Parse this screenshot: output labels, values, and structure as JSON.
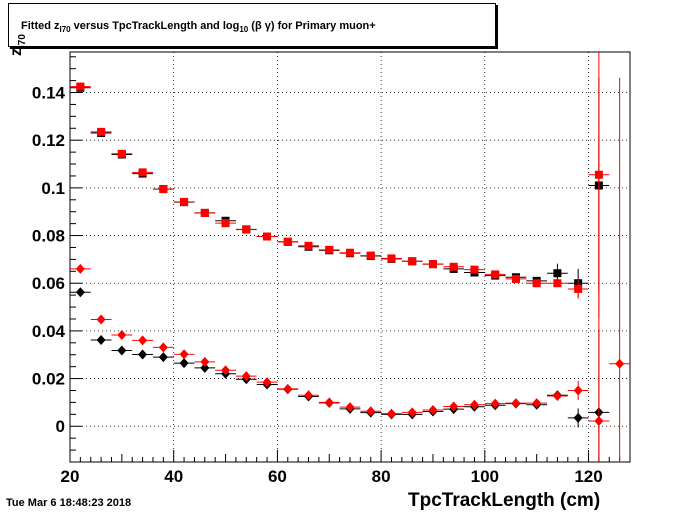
{
  "title": {
    "part1": "Fitted  z",
    "sub1": "I70",
    "part2": "  versus TpcTrackLength and log",
    "sub2": "10",
    "part3": " (β γ) for Primary muon+"
  },
  "timestamp": "Tue Mar  6 18:48:23 2018",
  "chart_data": {
    "type": "scatter",
    "xlabel": "TpcTrackLength (cm)",
    "ylabel_main": "z",
    "ylabel_sub": "I70",
    "xlim": [
      20,
      128
    ],
    "ylim": [
      -0.015,
      0.157
    ],
    "xticks": [
      20,
      40,
      60,
      80,
      100,
      120
    ],
    "xtick_labels": [
      "20",
      "40",
      "60",
      "80",
      "100",
      "120"
    ],
    "yticks": [
      0,
      0.02,
      0.04,
      0.06,
      0.08,
      0.1,
      0.12,
      0.14
    ],
    "ytick_labels": [
      "0",
      "0.02",
      "0.04",
      "0.06",
      "0.08",
      "0.1",
      "0.12",
      "0.14"
    ],
    "grid": true,
    "x_bin_halfwidth": 2,
    "series": [
      {
        "marker": "square",
        "color": "#000000",
        "points": [
          {
            "x": 22,
            "y": 0.142
          },
          {
            "x": 26,
            "y": 0.123
          },
          {
            "x": 30,
            "y": 0.114
          },
          {
            "x": 34,
            "y": 0.106
          },
          {
            "x": 38,
            "y": 0.0995
          },
          {
            "x": 42,
            "y": 0.094
          },
          {
            "x": 46,
            "y": 0.0895
          },
          {
            "x": 50,
            "y": 0.0862
          },
          {
            "x": 54,
            "y": 0.0826
          },
          {
            "x": 58,
            "y": 0.0796
          },
          {
            "x": 62,
            "y": 0.0774
          },
          {
            "x": 66,
            "y": 0.0753
          },
          {
            "x": 70,
            "y": 0.0738
          },
          {
            "x": 74,
            "y": 0.0726
          },
          {
            "x": 78,
            "y": 0.0714
          },
          {
            "x": 82,
            "y": 0.0702
          },
          {
            "x": 86,
            "y": 0.0692
          },
          {
            "x": 90,
            "y": 0.068
          },
          {
            "x": 94,
            "y": 0.066
          },
          {
            "x": 98,
            "y": 0.0645
          },
          {
            "x": 102,
            "y": 0.0632
          },
          {
            "x": 106,
            "y": 0.0625
          },
          {
            "x": 110,
            "y": 0.061
          },
          {
            "x": 114,
            "y": 0.0642,
            "err": 0.004
          },
          {
            "x": 118,
            "y": 0.06,
            "err": 0.006
          },
          {
            "x": 122,
            "y": 0.101,
            "err": 0.045
          }
        ]
      },
      {
        "marker": "square",
        "color": "#ff0000",
        "points": [
          {
            "x": 22,
            "y": 0.1425
          },
          {
            "x": 26,
            "y": 0.1235
          },
          {
            "x": 30,
            "y": 0.1143
          },
          {
            "x": 34,
            "y": 0.1065
          },
          {
            "x": 38,
            "y": 0.0995
          },
          {
            "x": 42,
            "y": 0.0941
          },
          {
            "x": 46,
            "y": 0.0895
          },
          {
            "x": 50,
            "y": 0.0852
          },
          {
            "x": 54,
            "y": 0.0825
          },
          {
            "x": 58,
            "y": 0.0796
          },
          {
            "x": 62,
            "y": 0.0773
          },
          {
            "x": 66,
            "y": 0.0757
          },
          {
            "x": 70,
            "y": 0.074
          },
          {
            "x": 74,
            "y": 0.0728
          },
          {
            "x": 78,
            "y": 0.0716
          },
          {
            "x": 82,
            "y": 0.0704
          },
          {
            "x": 86,
            "y": 0.0692
          },
          {
            "x": 90,
            "y": 0.068
          },
          {
            "x": 94,
            "y": 0.0669
          },
          {
            "x": 98,
            "y": 0.0657
          },
          {
            "x": 102,
            "y": 0.0637
          },
          {
            "x": 106,
            "y": 0.0618
          },
          {
            "x": 110,
            "y": 0.06
          },
          {
            "x": 114,
            "y": 0.06
          },
          {
            "x": 118,
            "y": 0.0576,
            "err": 0.004
          },
          {
            "x": 122,
            "y": 0.1055,
            "err": 0.06
          }
        ]
      },
      {
        "marker": "diamond",
        "color": "#000000",
        "points": [
          {
            "x": 22,
            "y": 0.0562
          },
          {
            "x": 26,
            "y": 0.0362
          },
          {
            "x": 30,
            "y": 0.0318
          },
          {
            "x": 34,
            "y": 0.0301
          },
          {
            "x": 38,
            "y": 0.029
          },
          {
            "x": 42,
            "y": 0.0265
          },
          {
            "x": 46,
            "y": 0.0245
          },
          {
            "x": 50,
            "y": 0.022
          },
          {
            "x": 54,
            "y": 0.0197
          },
          {
            "x": 58,
            "y": 0.0175
          },
          {
            "x": 62,
            "y": 0.0155
          },
          {
            "x": 66,
            "y": 0.0125
          },
          {
            "x": 70,
            "y": 0.0098
          },
          {
            "x": 74,
            "y": 0.0073
          },
          {
            "x": 78,
            "y": 0.0057
          },
          {
            "x": 82,
            "y": 0.005
          },
          {
            "x": 86,
            "y": 0.005
          },
          {
            "x": 90,
            "y": 0.0062
          },
          {
            "x": 94,
            "y": 0.0072
          },
          {
            "x": 98,
            "y": 0.0082
          },
          {
            "x": 102,
            "y": 0.0088
          },
          {
            "x": 106,
            "y": 0.0095
          },
          {
            "x": 110,
            "y": 0.009
          },
          {
            "x": 114,
            "y": 0.013
          },
          {
            "x": 118,
            "y": 0.0035,
            "err": 0.004
          },
          {
            "x": 122,
            "y": 0.0058,
            "err": 0.035
          }
        ]
      },
      {
        "marker": "diamond",
        "color": "#ff0000",
        "points": [
          {
            "x": 22,
            "y": 0.066
          },
          {
            "x": 26,
            "y": 0.0448
          },
          {
            "x": 30,
            "y": 0.0383
          },
          {
            "x": 34,
            "y": 0.036
          },
          {
            "x": 38,
            "y": 0.0331
          },
          {
            "x": 42,
            "y": 0.0302
          },
          {
            "x": 46,
            "y": 0.027
          },
          {
            "x": 50,
            "y": 0.0235
          },
          {
            "x": 54,
            "y": 0.021
          },
          {
            "x": 58,
            "y": 0.0185
          },
          {
            "x": 62,
            "y": 0.0157
          },
          {
            "x": 66,
            "y": 0.013
          },
          {
            "x": 70,
            "y": 0.01
          },
          {
            "x": 74,
            "y": 0.008
          },
          {
            "x": 78,
            "y": 0.0063
          },
          {
            "x": 82,
            "y": 0.0053
          },
          {
            "x": 86,
            "y": 0.0058
          },
          {
            "x": 90,
            "y": 0.0068
          },
          {
            "x": 94,
            "y": 0.0083
          },
          {
            "x": 98,
            "y": 0.009
          },
          {
            "x": 102,
            "y": 0.0095
          },
          {
            "x": 106,
            "y": 0.0097
          },
          {
            "x": 110,
            "y": 0.0097
          },
          {
            "x": 114,
            "y": 0.0127
          },
          {
            "x": 118,
            "y": 0.015,
            "err": 0.004
          },
          {
            "x": 122,
            "y": 0.0022,
            "err": 0.12
          },
          {
            "x": 126,
            "y": 0.0262,
            "err": 0.12
          }
        ]
      }
    ]
  }
}
